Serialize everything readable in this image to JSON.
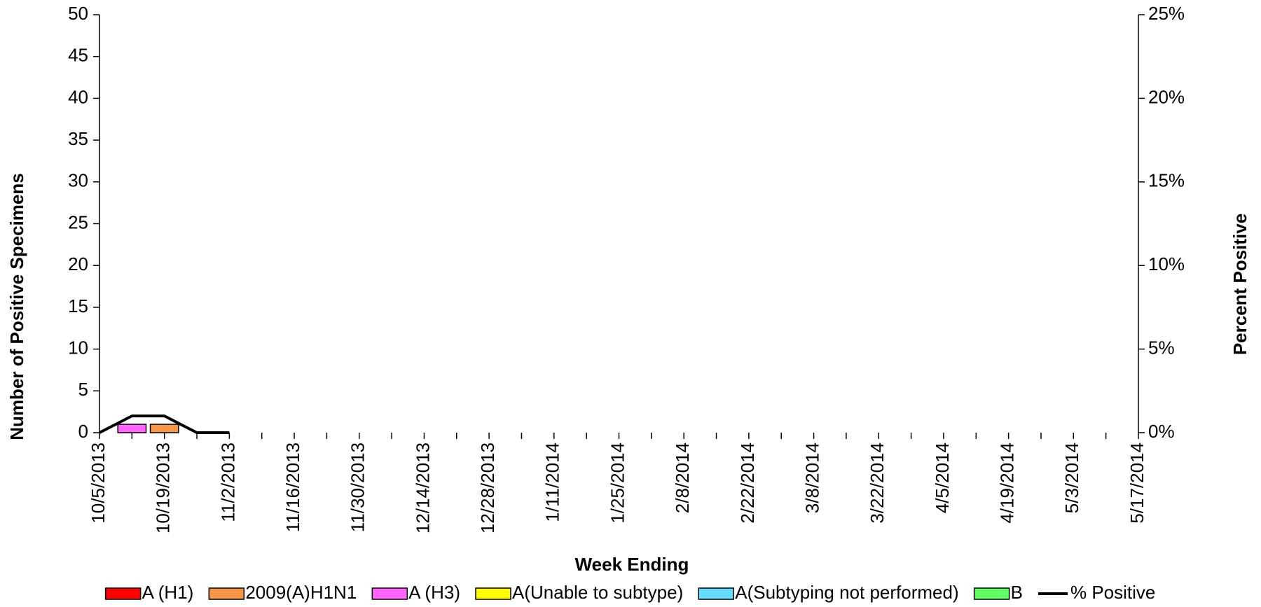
{
  "chart_data": {
    "type": "bar",
    "x_label": "Week Ending",
    "y_label": "Number of  Positive Specimens",
    "y2_label": "Percent Positive",
    "categories": [
      "10/5/2013",
      null,
      "10/19/2013",
      null,
      "11/2/2013",
      null,
      "11/16/2013",
      null,
      "11/30/2013",
      null,
      "12/14/2013",
      null,
      "12/28/2013",
      null,
      "1/11/2014",
      null,
      "1/25/2014",
      null,
      "2/8/2014",
      null,
      "2/22/2014",
      null,
      "3/8/2014",
      null,
      "3/22/2014",
      null,
      "4/5/2014",
      null,
      "4/19/2014",
      null,
      "5/3/2014",
      null,
      "5/17/2014"
    ],
    "ylim": [
      0,
      50
    ],
    "yticks": [
      0,
      5,
      10,
      15,
      20,
      25,
      30,
      35,
      40,
      45,
      50
    ],
    "y2lim": [
      0,
      25
    ],
    "y2ticks": [
      {
        "value": 0,
        "label": "0%"
      },
      {
        "value": 5,
        "label": "5%"
      },
      {
        "value": 10,
        "label": "10%"
      },
      {
        "value": 15,
        "label": "15%"
      },
      {
        "value": 20,
        "label": "20%"
      },
      {
        "value": 25,
        "label": "25%"
      }
    ],
    "series": [
      {
        "name": "A (H1)",
        "type": "bar",
        "color": "#ff0000",
        "values": [
          0,
          0,
          0,
          0,
          0,
          null,
          null,
          null,
          null,
          null,
          null,
          null,
          null,
          null,
          null,
          null,
          null,
          null,
          null,
          null,
          null,
          null,
          null,
          null,
          null,
          null,
          null,
          null,
          null,
          null,
          null,
          null,
          null
        ]
      },
      {
        "name": "2009(A)H1N1",
        "type": "bar",
        "color": "#f79646",
        "values": [
          0,
          0,
          1,
          0,
          0,
          null,
          null,
          null,
          null,
          null,
          null,
          null,
          null,
          null,
          null,
          null,
          null,
          null,
          null,
          null,
          null,
          null,
          null,
          null,
          null,
          null,
          null,
          null,
          null,
          null,
          null,
          null,
          null
        ]
      },
      {
        "name": "A (H3)",
        "type": "bar",
        "color": "#ff66ff",
        "values": [
          0,
          1,
          0,
          0,
          0,
          null,
          null,
          null,
          null,
          null,
          null,
          null,
          null,
          null,
          null,
          null,
          null,
          null,
          null,
          null,
          null,
          null,
          null,
          null,
          null,
          null,
          null,
          null,
          null,
          null,
          null,
          null,
          null
        ]
      },
      {
        "name": "A(Unable to subtype)",
        "type": "bar",
        "color": "#ffff00",
        "values": [
          0,
          0,
          0,
          0,
          0,
          null,
          null,
          null,
          null,
          null,
          null,
          null,
          null,
          null,
          null,
          null,
          null,
          null,
          null,
          null,
          null,
          null,
          null,
          null,
          null,
          null,
          null,
          null,
          null,
          null,
          null,
          null,
          null
        ]
      },
      {
        "name": "A(Subtyping not performed)",
        "type": "bar",
        "color": "#66ddff",
        "values": [
          0,
          0,
          0,
          0,
          0,
          null,
          null,
          null,
          null,
          null,
          null,
          null,
          null,
          null,
          null,
          null,
          null,
          null,
          null,
          null,
          null,
          null,
          null,
          null,
          null,
          null,
          null,
          null,
          null,
          null,
          null,
          null,
          null
        ]
      },
      {
        "name": "B",
        "type": "bar",
        "color": "#66ff66",
        "values": [
          0,
          0,
          0,
          0,
          0,
          null,
          null,
          null,
          null,
          null,
          null,
          null,
          null,
          null,
          null,
          null,
          null,
          null,
          null,
          null,
          null,
          null,
          null,
          null,
          null,
          null,
          null,
          null,
          null,
          null,
          null,
          null,
          null
        ]
      },
      {
        "name": "% Positive",
        "type": "line",
        "axis": "y2",
        "color": "#000000",
        "values": [
          0,
          1,
          1,
          0,
          0,
          null,
          null,
          null,
          null,
          null,
          null,
          null,
          null,
          null,
          null,
          null,
          null,
          null,
          null,
          null,
          null,
          null,
          null,
          null,
          null,
          null,
          null,
          null,
          null,
          null,
          null,
          null,
          null
        ]
      }
    ],
    "legend": "bottom"
  }
}
